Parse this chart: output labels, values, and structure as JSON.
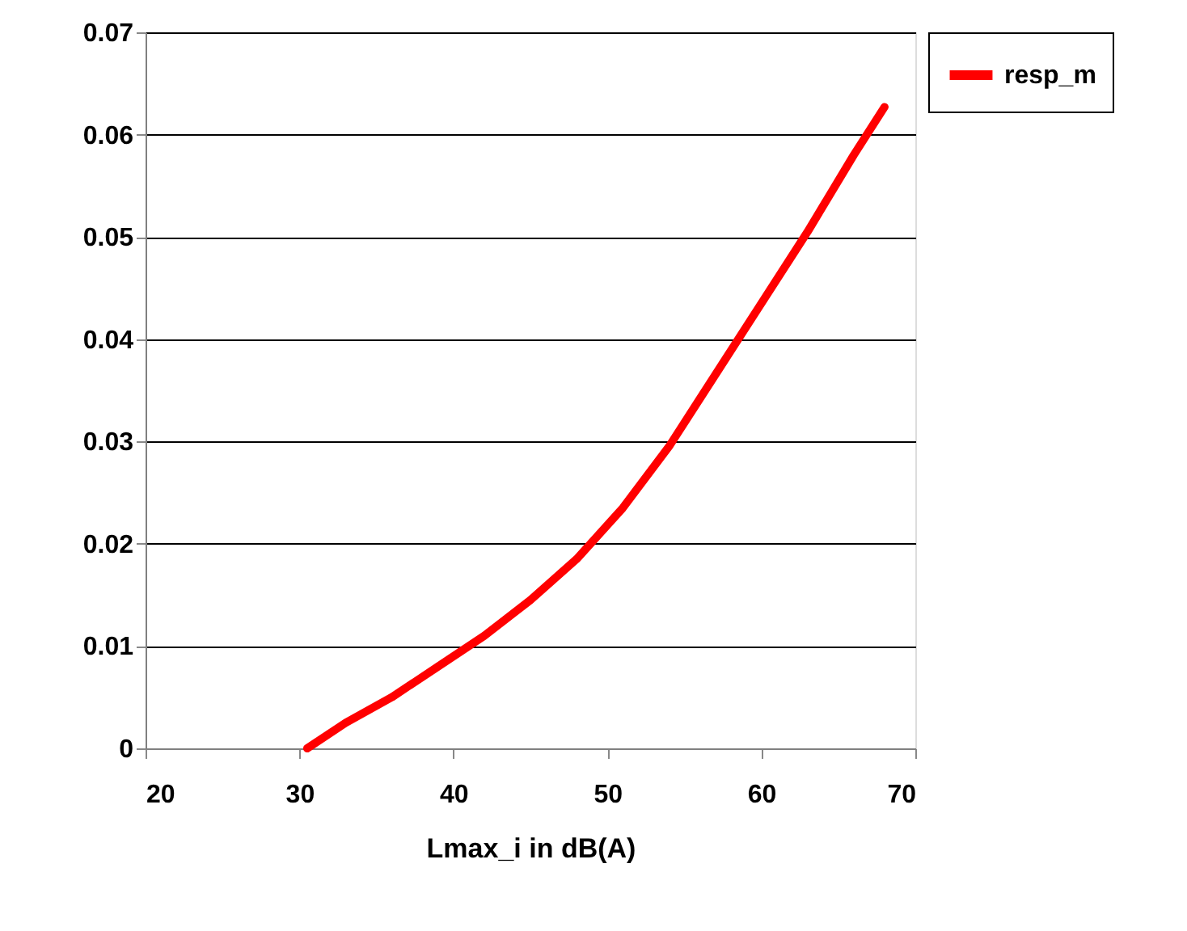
{
  "chart_data": {
    "type": "line",
    "xlabel": "Lmax_i in dB(A)",
    "x": [
      30.5,
      33,
      36,
      39,
      42,
      45,
      48,
      51,
      54,
      57,
      60,
      63,
      66,
      68
    ],
    "series": [
      {
        "name": "resp_m",
        "color": "#ff0000",
        "values": [
          0,
          0.0025,
          0.005,
          0.008,
          0.011,
          0.0145,
          0.0185,
          0.0235,
          0.0295,
          0.0365,
          0.0435,
          0.0505,
          0.058,
          0.0627
        ]
      }
    ],
    "xlim": [
      20,
      70
    ],
    "xticks": [
      20,
      30,
      40,
      50,
      60,
      70
    ],
    "ylim": [
      0,
      0.07
    ],
    "yticks": [
      {
        "value": 0,
        "label": "0"
      },
      0.01,
      0.02,
      0.03,
      0.04,
      0.05,
      0.06,
      0.07
    ],
    "grid": "y",
    "legend": "right",
    "marker": "none",
    "line_style": "solid"
  }
}
